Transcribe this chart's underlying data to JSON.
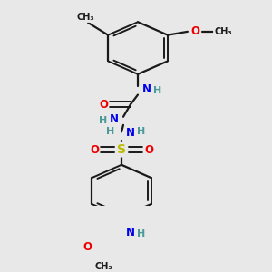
{
  "bg_color": "#e8e8e8",
  "bond_color": "#1a1a1a",
  "atom_colors": {
    "N": "#0000ee",
    "O": "#ee0000",
    "S": "#bbbb00",
    "C": "#1a1a1a",
    "H": "#4a9a9a"
  },
  "figsize": [
    3.0,
    3.0
  ],
  "dpi": 100,
  "xlim": [
    0,
    300
  ],
  "ylim": [
    0,
    300
  ]
}
